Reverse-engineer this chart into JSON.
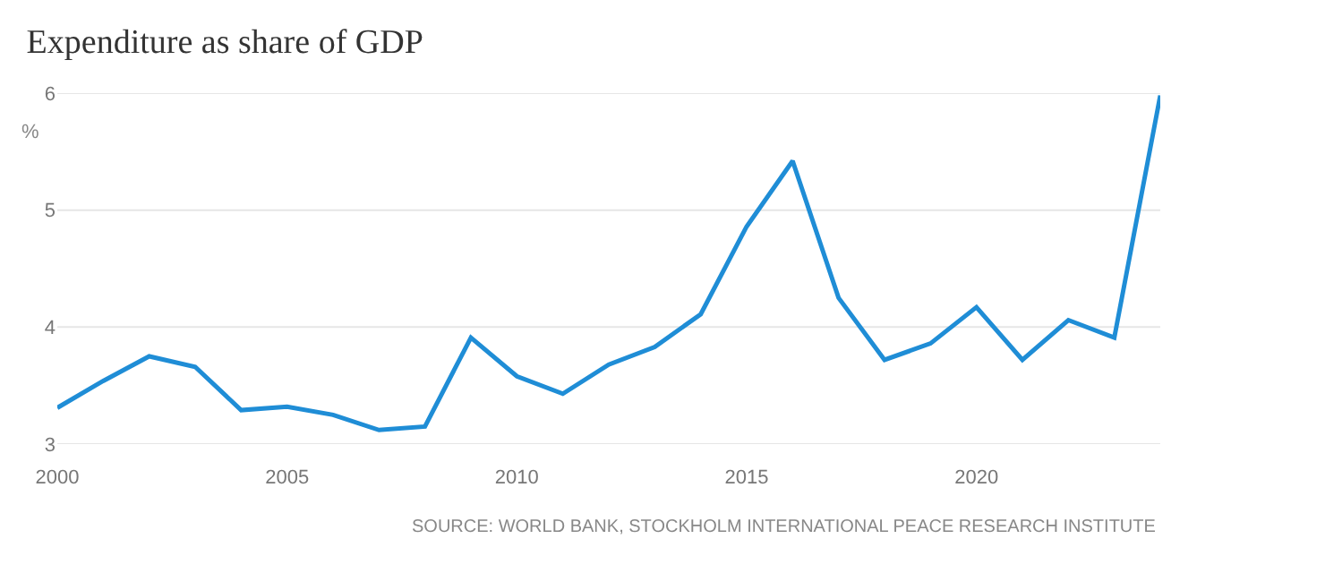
{
  "chart_data": {
    "type": "line",
    "title": "Expenditure as share of GDP",
    "ylabel": "%",
    "x": [
      2000,
      2001,
      2002,
      2003,
      2004,
      2005,
      2006,
      2007,
      2008,
      2009,
      2010,
      2011,
      2012,
      2013,
      2014,
      2015,
      2016,
      2017,
      2018,
      2019,
      2020,
      2021,
      2022,
      2023,
      2024
    ],
    "series": [
      {
        "color": "#1f8dd6",
        "values": [
          3.31,
          3.54,
          3.75,
          3.66,
          3.29,
          3.32,
          3.25,
          3.12,
          3.15,
          3.91,
          3.58,
          3.43,
          3.68,
          3.83,
          4.11,
          4.86,
          5.42,
          4.25,
          3.72,
          3.86,
          4.17,
          3.72,
          4.06,
          3.91,
          5.98
        ]
      }
    ],
    "xlim": [
      2000,
      2024
    ],
    "xticks": [
      2000,
      2005,
      2010,
      2015,
      2020
    ],
    "ylim": [
      3,
      6
    ],
    "yticks": [
      3,
      4,
      5,
      6
    ],
    "grid": "y",
    "marker": "none",
    "line_style": "solid",
    "annotations": [
      "SOURCE: WORLD BANK, STOCKHOLM INTERNATIONAL PEACE RESEARCH INSTITUTE"
    ]
  }
}
